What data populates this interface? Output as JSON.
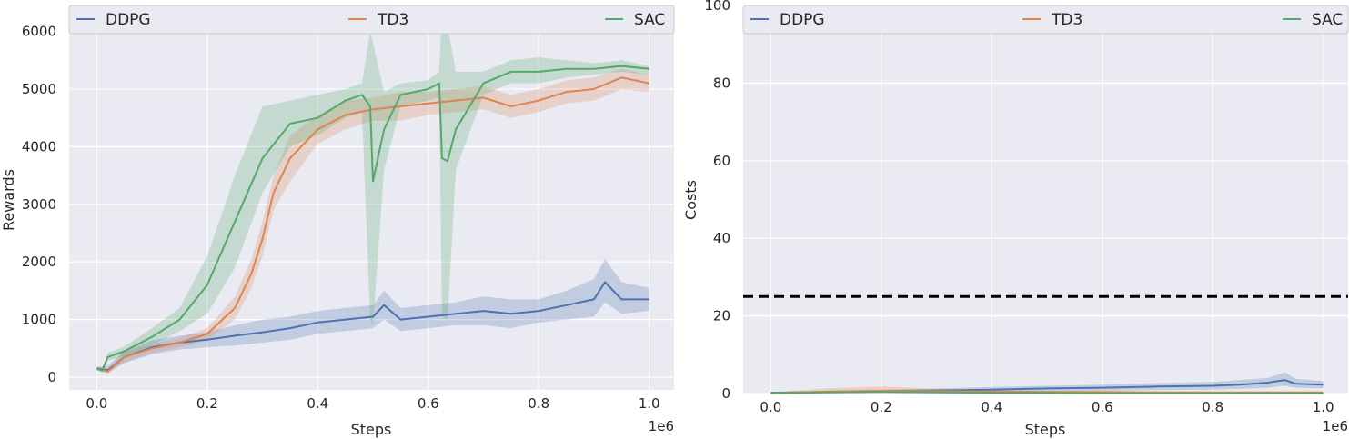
{
  "colors": {
    "DDPG": "#4c72b0",
    "TD3": "#dd8452",
    "SAC": "#55a868",
    "threshold": "#000000",
    "background": "#eaeaf2",
    "grid": "#ffffff"
  },
  "chart_data": [
    {
      "type": "line",
      "xlabel": "Steps",
      "ylabel": "Rewards",
      "x_multiplier": "1e6",
      "xlim": [
        -0.05,
        1.045
      ],
      "ylim": [
        -220,
        6450
      ],
      "xticks": [
        0.0,
        0.2,
        0.4,
        0.6,
        0.8,
        1.0
      ],
      "xtick_labels": [
        "0.0",
        "0.2",
        "0.4",
        "0.6",
        "0.8",
        "1.0"
      ],
      "yticks": [
        0,
        1000,
        2000,
        3000,
        4000,
        5000,
        6000
      ],
      "ytick_labels": [
        "0",
        "1000",
        "2000",
        "3000",
        "4000",
        "5000",
        "6000"
      ],
      "grid": true,
      "legend": {
        "placement": "top",
        "entries": [
          "DDPG",
          "TD3",
          "SAC"
        ]
      },
      "series": [
        {
          "name": "DDPG",
          "x": [
            0.0,
            0.02,
            0.05,
            0.1,
            0.15,
            0.2,
            0.25,
            0.3,
            0.35,
            0.4,
            0.45,
            0.5,
            0.52,
            0.55,
            0.6,
            0.65,
            0.7,
            0.75,
            0.8,
            0.85,
            0.9,
            0.92,
            0.95,
            1.0
          ],
          "y": [
            150,
            120,
            350,
            520,
            600,
            650,
            720,
            780,
            850,
            950,
            1000,
            1050,
            1250,
            1000,
            1050,
            1100,
            1150,
            1100,
            1150,
            1250,
            1350,
            1650,
            1350,
            1350
          ],
          "lower": [
            120,
            80,
            250,
            400,
            480,
            520,
            550,
            600,
            650,
            750,
            800,
            850,
            1000,
            800,
            850,
            900,
            900,
            850,
            950,
            1000,
            1050,
            1300,
            1100,
            1150
          ],
          "upper": [
            180,
            200,
            450,
            640,
            720,
            780,
            900,
            1000,
            1050,
            1150,
            1200,
            1250,
            1500,
            1200,
            1250,
            1300,
            1400,
            1350,
            1350,
            1500,
            1700,
            2050,
            1650,
            1550
          ]
        },
        {
          "name": "TD3",
          "x": [
            0.0,
            0.02,
            0.05,
            0.1,
            0.15,
            0.2,
            0.25,
            0.28,
            0.3,
            0.32,
            0.35,
            0.4,
            0.45,
            0.5,
            0.55,
            0.6,
            0.65,
            0.7,
            0.75,
            0.8,
            0.85,
            0.9,
            0.95,
            1.0
          ],
          "y": [
            150,
            100,
            350,
            500,
            600,
            750,
            1200,
            1800,
            2400,
            3200,
            3800,
            4300,
            4550,
            4650,
            4700,
            4750,
            4800,
            4850,
            4700,
            4800,
            4950,
            5000,
            5200,
            5100
          ],
          "lower": [
            120,
            60,
            260,
            420,
            520,
            650,
            1000,
            1550,
            2100,
            2900,
            3400,
            4050,
            4300,
            4450,
            4450,
            4550,
            4600,
            4650,
            4500,
            4600,
            4750,
            4800,
            5000,
            4950
          ],
          "upper": [
            180,
            150,
            440,
            580,
            680,
            850,
            1400,
            2050,
            2700,
            3500,
            4200,
            4550,
            4800,
            4850,
            4950,
            4950,
            5000,
            5050,
            4900,
            5000,
            5150,
            5200,
            5350,
            5250
          ]
        },
        {
          "name": "SAC",
          "x": [
            0.0,
            0.01,
            0.02,
            0.05,
            0.1,
            0.15,
            0.2,
            0.25,
            0.3,
            0.35,
            0.4,
            0.45,
            0.48,
            0.495,
            0.5,
            0.52,
            0.55,
            0.6,
            0.62,
            0.625,
            0.635,
            0.65,
            0.7,
            0.75,
            0.8,
            0.85,
            0.9,
            0.95,
            1.0
          ],
          "y": [
            150,
            120,
            350,
            450,
            700,
            1000,
            1600,
            2700,
            3800,
            4400,
            4500,
            4800,
            4900,
            4700,
            3400,
            4300,
            4900,
            5000,
            5100,
            3800,
            3750,
            4300,
            5100,
            5300,
            5300,
            5350,
            5350,
            5400,
            5350
          ],
          "lower": [
            120,
            80,
            280,
            370,
            550,
            800,
            1100,
            1900,
            3200,
            4000,
            4200,
            4500,
            4600,
            1000,
            900,
            3600,
            4700,
            4800,
            4850,
            1050,
            1000,
            3600,
            4900,
            5100,
            5100,
            5200,
            5250,
            5300,
            5250
          ],
          "upper": [
            180,
            160,
            420,
            530,
            850,
            1200,
            2100,
            3500,
            4700,
            4800,
            4900,
            5000,
            5100,
            6000,
            5800,
            4950,
            5100,
            5150,
            5300,
            6350,
            6100,
            5300,
            5300,
            5500,
            5550,
            5500,
            5450,
            5500,
            5400
          ]
        }
      ]
    },
    {
      "type": "line",
      "xlabel": "Steps",
      "ylabel": "Costs",
      "x_multiplier": "1e6",
      "xlim": [
        -0.05,
        1.045
      ],
      "ylim": [
        0,
        100
      ],
      "xticks": [
        0.0,
        0.2,
        0.4,
        0.6,
        0.8,
        1.0
      ],
      "xtick_labels": [
        "0.0",
        "0.2",
        "0.4",
        "0.6",
        "0.8",
        "1.0"
      ],
      "yticks": [
        0,
        20,
        40,
        60,
        80,
        100
      ],
      "ytick_labels": [
        "0",
        "20",
        "40",
        "60",
        "80",
        "100"
      ],
      "grid": true,
      "legend": {
        "placement": "top",
        "entries": [
          "DDPG",
          "TD3",
          "SAC"
        ]
      },
      "threshold": 25,
      "series": [
        {
          "name": "DDPG",
          "x": [
            0.0,
            0.1,
            0.2,
            0.3,
            0.4,
            0.5,
            0.6,
            0.7,
            0.8,
            0.85,
            0.9,
            0.93,
            0.95,
            1.0
          ],
          "y": [
            0.2,
            0.4,
            0.6,
            0.8,
            1.0,
            1.3,
            1.5,
            1.8,
            2.0,
            2.3,
            2.8,
            3.5,
            2.5,
            2.3
          ],
          "lower": [
            0,
            0.1,
            0.2,
            0.3,
            0.4,
            0.6,
            0.7,
            0.9,
            1.0,
            1.2,
            1.5,
            2.0,
            1.5,
            1.3
          ],
          "upper": [
            0.4,
            0.7,
            1.0,
            1.3,
            1.7,
            2.0,
            2.3,
            2.7,
            3.0,
            3.5,
            4.0,
            5.5,
            3.8,
            3.2
          ]
        },
        {
          "name": "TD3",
          "x": [
            0.0,
            0.1,
            0.2,
            0.3,
            0.4,
            0.5,
            0.6,
            0.7,
            0.8,
            0.9,
            1.0
          ],
          "y": [
            0.1,
            0.5,
            0.7,
            0.6,
            0.5,
            0.4,
            0.4,
            0.3,
            0.3,
            0.3,
            0.3
          ],
          "lower": [
            0,
            0.2,
            0.3,
            0.3,
            0.2,
            0.2,
            0.2,
            0.1,
            0.1,
            0.1,
            0.1
          ],
          "upper": [
            0.3,
            1.3,
            1.8,
            1.2,
            0.9,
            0.7,
            0.6,
            0.5,
            0.5,
            0.5,
            0.5
          ]
        },
        {
          "name": "SAC",
          "x": [
            0.0,
            0.1,
            0.2,
            0.3,
            0.4,
            0.5,
            0.6,
            0.7,
            0.8,
            0.9,
            1.0
          ],
          "y": [
            0.1,
            0.3,
            0.4,
            0.3,
            0.2,
            0.2,
            0.1,
            0.1,
            0.1,
            0.1,
            0.1
          ],
          "lower": [
            0,
            0.1,
            0.1,
            0.1,
            0.1,
            0.1,
            0.05,
            0.05,
            0.05,
            0.05,
            0.05
          ],
          "upper": [
            0.2,
            0.6,
            0.7,
            0.5,
            0.4,
            0.3,
            0.2,
            0.2,
            0.2,
            0.2,
            0.2
          ]
        }
      ]
    }
  ]
}
